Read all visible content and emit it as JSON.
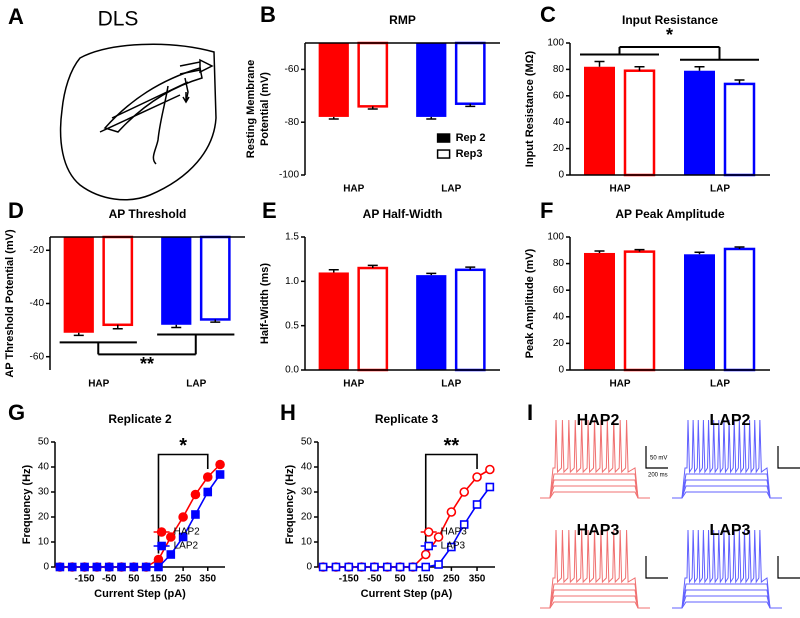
{
  "panel_a": {
    "letter": "A",
    "label": "DLS"
  },
  "chart_data": [
    {
      "type": "bar",
      "letter": "B",
      "title": "RMP",
      "ylabel": [
        "Resting Membrane",
        "Potential (mV)"
      ],
      "categories": [
        "HAP",
        "LAP"
      ],
      "category_colors": [
        "#ff0000",
        "#0000ff"
      ],
      "series": [
        {
          "name": "Rep 2",
          "fill": "solid",
          "values": [
            -78,
            -78
          ],
          "errors": [
            0.8,
            0.8
          ]
        },
        {
          "name": "Rep3",
          "fill": "open",
          "values": [
            -74,
            -73
          ],
          "errors": [
            1,
            1
          ]
        }
      ],
      "ylim": [
        -100,
        -50
      ],
      "yticks": [
        -60,
        -80,
        -100
      ],
      "legend": "lower right"
    },
    {
      "type": "bar",
      "letter": "C",
      "title": "Input Resistance",
      "ylabel": [
        "Input Resistance (MΩ)"
      ],
      "categories": [
        "HAP",
        "LAP"
      ],
      "category_colors": [
        "#ff0000",
        "#0000ff"
      ],
      "series": [
        {
          "fill": "solid",
          "values": [
            82,
            79
          ],
          "errors": [
            4,
            3
          ]
        },
        {
          "fill": "open",
          "values": [
            79,
            69
          ],
          "errors": [
            3,
            3
          ]
        }
      ],
      "ylim": [
        0,
        100
      ],
      "yticks": [
        0,
        20,
        40,
        60,
        80,
        100
      ],
      "annotation": "*"
    },
    {
      "type": "bar",
      "letter": "D",
      "title": "AP Threshold",
      "ylabel": [
        "AP Threshold Potential (mV)"
      ],
      "categories": [
        "HAP",
        "LAP"
      ],
      "category_colors": [
        "#ff0000",
        "#0000ff"
      ],
      "series": [
        {
          "fill": "solid",
          "values": [
            -51,
            -48
          ],
          "errors": [
            1,
            1
          ]
        },
        {
          "fill": "open",
          "values": [
            -48,
            -46
          ],
          "errors": [
            1.5,
            1
          ]
        }
      ],
      "ylim": [
        -65,
        -15
      ],
      "yticks": [
        -20,
        -40,
        -60
      ],
      "annotation": "**"
    },
    {
      "type": "bar",
      "letter": "E",
      "title": "AP Half-Width",
      "ylabel": [
        "Half-Width (ms)"
      ],
      "categories": [
        "HAP",
        "LAP"
      ],
      "category_colors": [
        "#ff0000",
        "#0000ff"
      ],
      "series": [
        {
          "fill": "solid",
          "values": [
            1.1,
            1.07
          ],
          "errors": [
            0.03,
            0.02
          ]
        },
        {
          "fill": "open",
          "values": [
            1.15,
            1.13
          ],
          "errors": [
            0.03,
            0.03
          ]
        }
      ],
      "ylim": [
        0,
        1.5
      ],
      "yticks": [
        {
          "value": 0,
          "label": "0.0"
        },
        {
          "value": 0.5,
          "label": "0.5"
        },
        {
          "value": 1,
          "label": "1.0"
        },
        {
          "value": 1.5,
          "label": "1.5"
        }
      ]
    },
    {
      "type": "bar",
      "letter": "F",
      "title": "AP Peak Amplitude",
      "ylabel": [
        "Peak Amplitude (mV)"
      ],
      "categories": [
        "HAP",
        "LAP"
      ],
      "category_colors": [
        "#ff0000",
        "#0000ff"
      ],
      "series": [
        {
          "fill": "solid",
          "values": [
            88,
            87
          ],
          "errors": [
            1.5,
            1.5
          ]
        },
        {
          "fill": "open",
          "values": [
            89,
            91
          ],
          "errors": [
            1.5,
            1.5
          ]
        }
      ],
      "ylim": [
        0,
        100
      ],
      "yticks": [
        0,
        20,
        40,
        60,
        80,
        100
      ]
    },
    {
      "type": "line",
      "letter": "G",
      "title": "Replicate 2",
      "xlabel": "Current Step (pA)",
      "ylabel": "Frequency (Hz)",
      "x": [
        -250,
        -200,
        -150,
        -100,
        -50,
        0,
        50,
        100,
        150,
        200,
        250,
        300,
        350,
        400
      ],
      "series": [
        {
          "name": "HAP2",
          "color": "#ff0000",
          "marker": "circle",
          "fill": "solid",
          "values": [
            0,
            0,
            0,
            0,
            0,
            0,
            0,
            0,
            3,
            12,
            20,
            29,
            36,
            41
          ]
        },
        {
          "name": "LAP2",
          "color": "#0000ff",
          "marker": "square",
          "fill": "solid",
          "values": [
            0,
            0,
            0,
            0,
            0,
            0,
            0,
            0,
            0,
            5,
            12,
            21,
            30,
            37
          ]
        }
      ],
      "xlim": [
        -270,
        420
      ],
      "xticks": [
        -150,
        -50,
        50,
        150,
        250,
        350
      ],
      "ylim": [
        0,
        50
      ],
      "yticks": [
        0,
        10,
        20,
        30,
        40,
        50
      ],
      "legend": "lower right",
      "annotation": "*"
    },
    {
      "type": "line",
      "letter": "H",
      "title": "Replicate 3",
      "xlabel": "Current Step (pA)",
      "ylabel": "Frequency (Hz)",
      "x": [
        -250,
        -200,
        -150,
        -100,
        -50,
        0,
        50,
        100,
        150,
        200,
        250,
        300,
        350,
        400
      ],
      "series": [
        {
          "name": "HAP3",
          "color": "#ff0000",
          "marker": "circle",
          "fill": "open",
          "values": [
            0,
            0,
            0,
            0,
            0,
            0,
            0,
            0,
            5,
            12,
            22,
            30,
            36,
            39
          ]
        },
        {
          "name": "LAP3",
          "color": "#0000ff",
          "marker": "square",
          "fill": "open",
          "values": [
            0,
            0,
            0,
            0,
            0,
            0,
            0,
            0,
            0,
            1,
            8,
            17,
            25,
            32
          ]
        }
      ],
      "xlim": [
        -270,
        420
      ],
      "xticks": [
        -150,
        -50,
        50,
        150,
        250,
        350
      ],
      "ylim": [
        0,
        50
      ],
      "yticks": [
        0,
        10,
        20,
        30,
        40,
        50
      ],
      "legend": "lower right",
      "annotation": "**"
    }
  ],
  "panel_i": {
    "letter": "I",
    "labels": [
      "HAP2",
      "LAP2",
      "HAP3",
      "LAP3"
    ],
    "scale": [
      "50 mV",
      "200 ms"
    ]
  }
}
